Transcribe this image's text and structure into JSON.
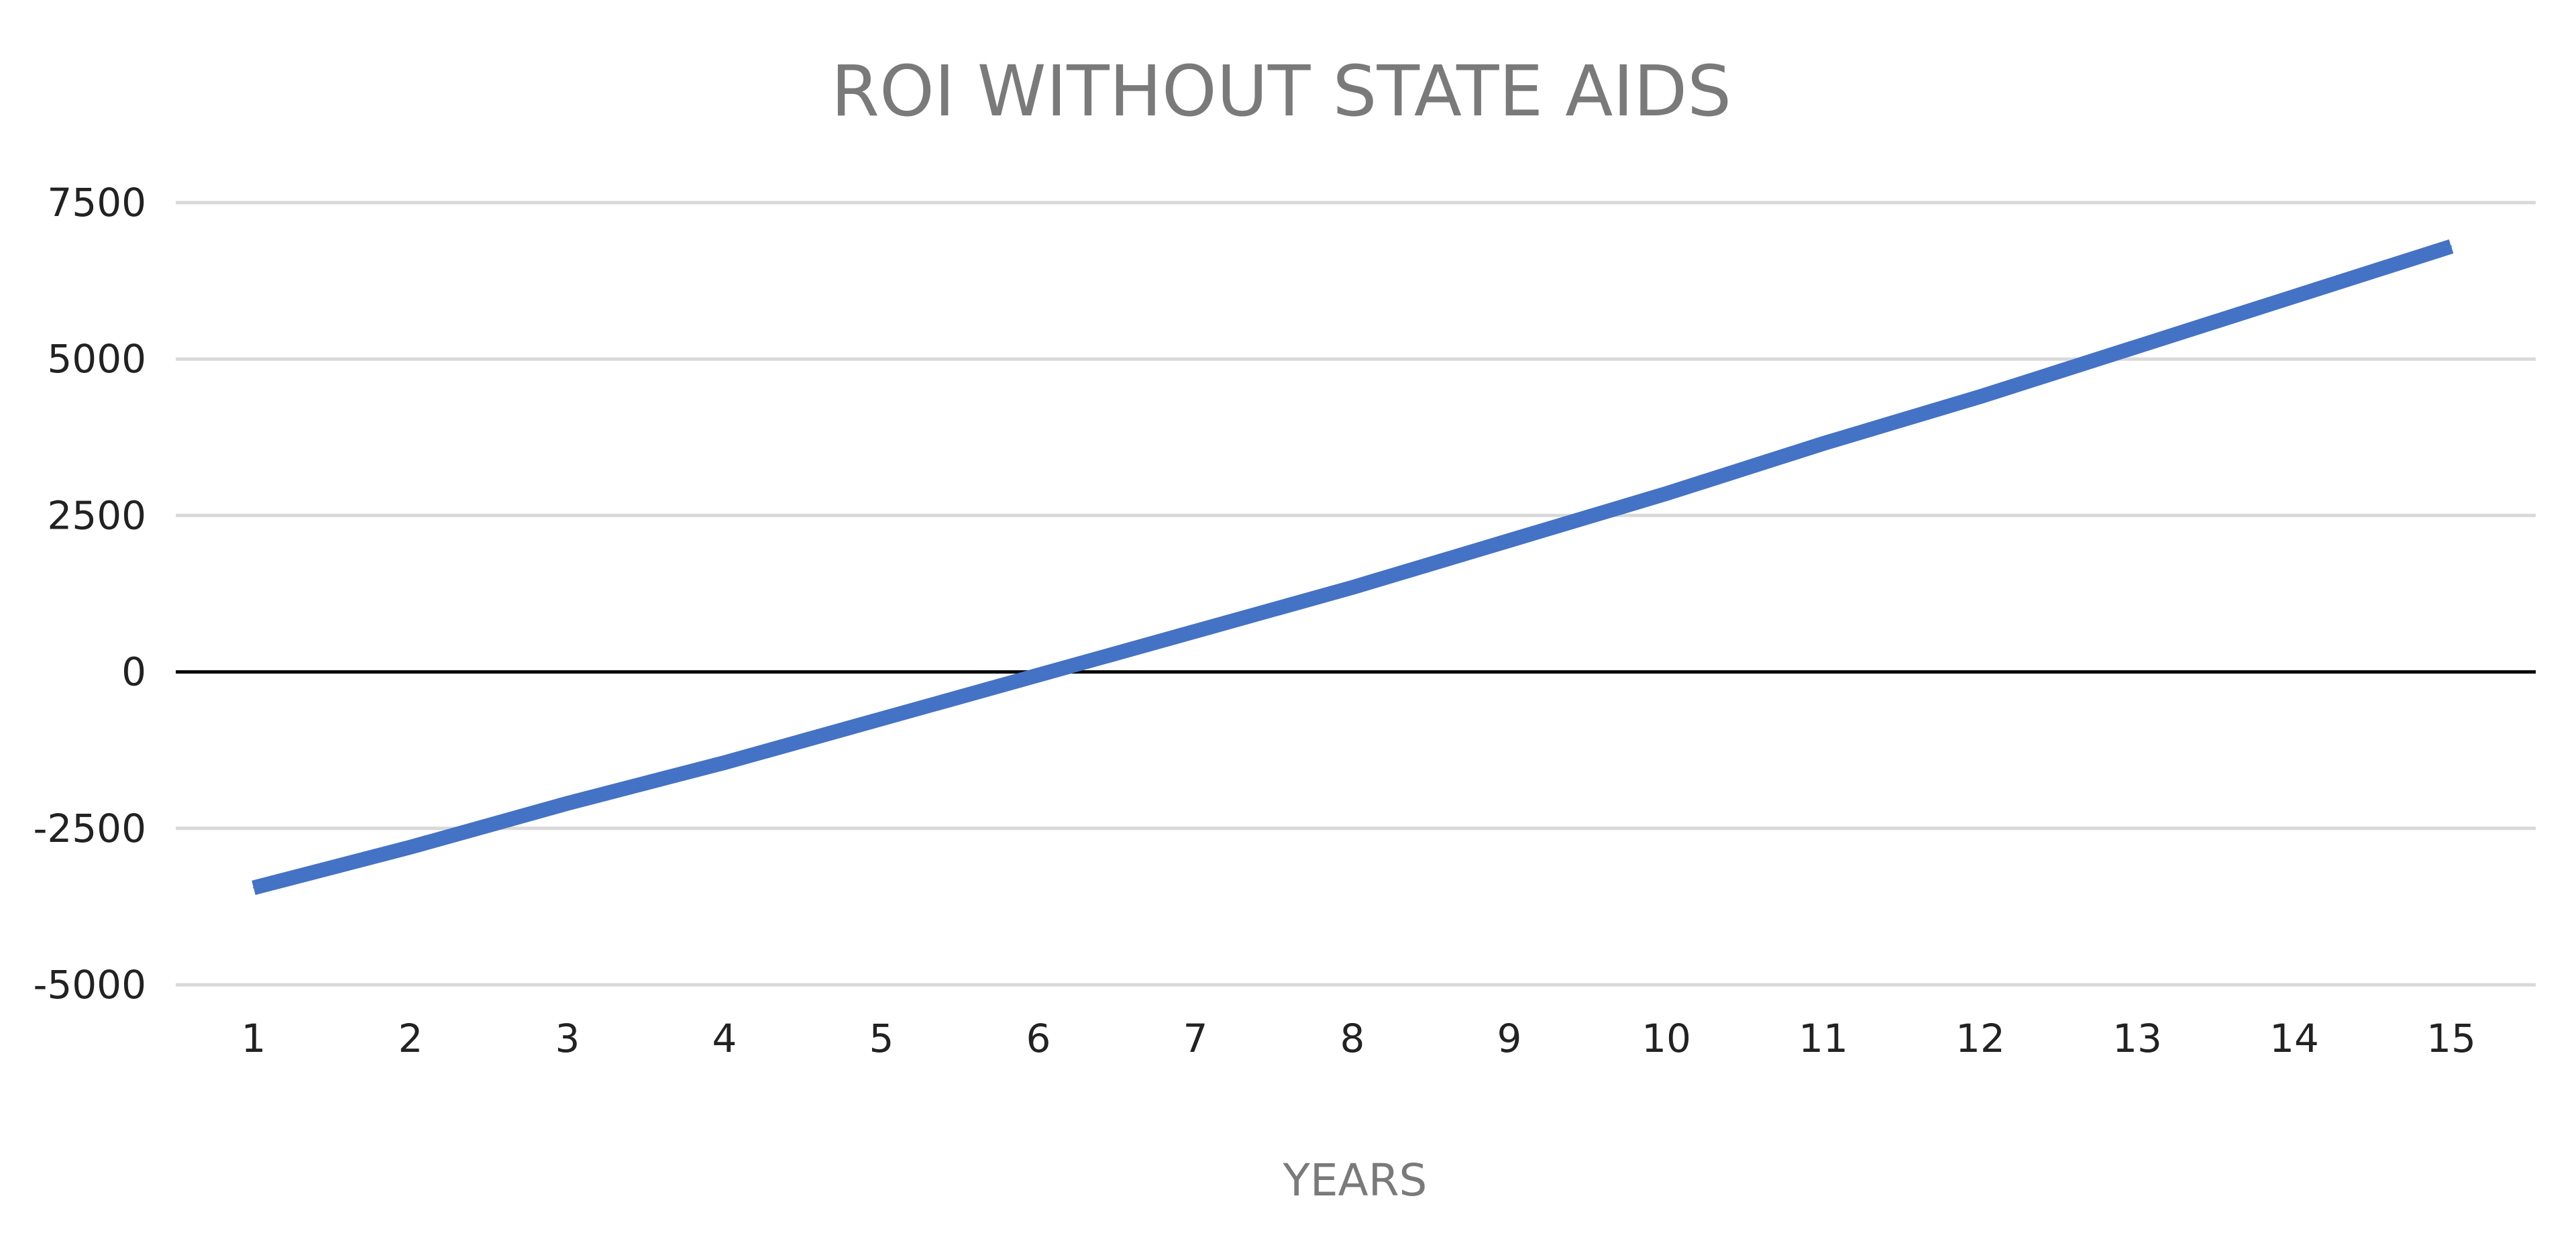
{
  "chart_data": {
    "type": "line",
    "title": "ROI WITHOUT STATE AIDS",
    "xlabel": "YEARS",
    "ylabel": "",
    "categories": [
      "1",
      "2",
      "3",
      "4",
      "5",
      "6",
      "7",
      "8",
      "9",
      "10",
      "11",
      "12",
      "13",
      "14",
      "15"
    ],
    "yticks": [
      "7500",
      "5000",
      "2500",
      "0",
      "-2500",
      "-5000"
    ],
    "ylim": [
      -5000,
      7500
    ],
    "grid": true,
    "legend": "none",
    "series": [
      {
        "color": "#4472C4",
        "values": [
          -3450,
          -2800,
          -2100,
          -1450,
          -750,
          -50,
          650,
          1350,
          2100,
          2850,
          3650,
          4400,
          5200,
          6000,
          6800
        ]
      }
    ],
    "colors": {
      "gridline": "#d9d9d9",
      "zero_line": "#000000",
      "title": "#7a7a7a",
      "tick_label": "#222222"
    }
  }
}
